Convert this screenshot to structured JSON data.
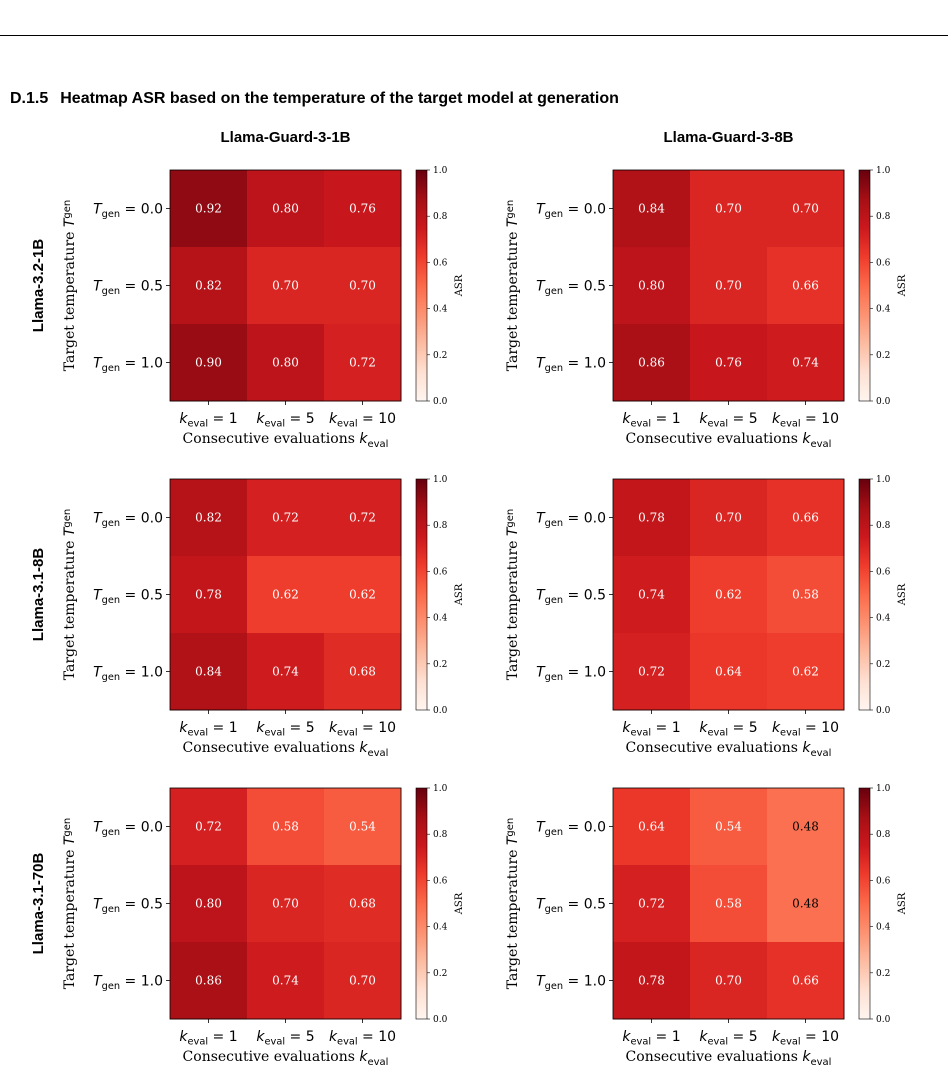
{
  "heading": {
    "number": "D.1.5",
    "title": "Heatmap ASR based on the temperature of the target model at generation"
  },
  "column_titles": [
    "Llama-Guard-3-1B",
    "Llama-Guard-3-8B"
  ],
  "row_titles": [
    "Llama-3.2-1B",
    "Llama-3.1-8B",
    "Llama-3.1-70B"
  ],
  "colormap": {
    "name": "Reds",
    "stops": [
      "#fff5f0",
      "#fee0d2",
      "#fcbba1",
      "#fc9272",
      "#fb6a4a",
      "#ef3b2c",
      "#cb181d",
      "#a50f15",
      "#67000d"
    ]
  },
  "chart_data": [
    {
      "type": "heatmap",
      "title": "Llama-Guard-3-1B",
      "row_label": "Llama-3.2-1B",
      "xlabel_text": "Consecutive evaluations",
      "xlabel_symbol": "k",
      "xlabel_sub": "eval",
      "ylabel_text": "Target temperature",
      "ylabel_symbol": "T",
      "ylabel_sub": "gen",
      "x_tick_labels": [
        {
          "sym": "k",
          "sub": "eval",
          "val": "= 1"
        },
        {
          "sym": "k",
          "sub": "eval",
          "val": "= 5"
        },
        {
          "sym": "k",
          "sub": "eval",
          "val": "= 10"
        }
      ],
      "y_tick_labels": [
        {
          "sym": "T",
          "sub": "gen",
          "val": "= 0.0"
        },
        {
          "sym": "T",
          "sub": "gen",
          "val": "= 0.5"
        },
        {
          "sym": "T",
          "sub": "gen",
          "val": "= 1.0"
        }
      ],
      "values": [
        [
          0.92,
          0.8,
          0.76
        ],
        [
          0.82,
          0.7,
          0.7
        ],
        [
          0.9,
          0.8,
          0.72
        ]
      ],
      "colorbar": {
        "label": "ASR",
        "range": [
          0.0,
          1.0
        ],
        "ticks": [
          "0.0",
          "0.2",
          "0.4",
          "0.6",
          "0.8",
          "1.0"
        ]
      }
    },
    {
      "type": "heatmap",
      "title": "Llama-Guard-3-8B",
      "row_label": "Llama-3.2-1B",
      "xlabel_text": "Consecutive evaluations",
      "xlabel_symbol": "k",
      "xlabel_sub": "eval",
      "ylabel_text": "Target temperature",
      "ylabel_symbol": "T",
      "ylabel_sub": "gen",
      "x_tick_labels": [
        {
          "sym": "k",
          "sub": "eval",
          "val": "= 1"
        },
        {
          "sym": "k",
          "sub": "eval",
          "val": "= 5"
        },
        {
          "sym": "k",
          "sub": "eval",
          "val": "= 10"
        }
      ],
      "y_tick_labels": [
        {
          "sym": "T",
          "sub": "gen",
          "val": "= 0.0"
        },
        {
          "sym": "T",
          "sub": "gen",
          "val": "= 0.5"
        },
        {
          "sym": "T",
          "sub": "gen",
          "val": "= 1.0"
        }
      ],
      "values": [
        [
          0.84,
          0.7,
          0.7
        ],
        [
          0.8,
          0.7,
          0.66
        ],
        [
          0.86,
          0.76,
          0.74
        ]
      ],
      "colorbar": {
        "label": "ASR",
        "range": [
          0.0,
          1.0
        ],
        "ticks": [
          "0.0",
          "0.2",
          "0.4",
          "0.6",
          "0.8",
          "1.0"
        ]
      }
    },
    {
      "type": "heatmap",
      "title": "Llama-Guard-3-1B",
      "row_label": "Llama-3.1-8B",
      "xlabel_text": "Consecutive evaluations",
      "xlabel_symbol": "k",
      "xlabel_sub": "eval",
      "ylabel_text": "Target temperature",
      "ylabel_symbol": "T",
      "ylabel_sub": "gen",
      "x_tick_labels": [
        {
          "sym": "k",
          "sub": "eval",
          "val": "= 1"
        },
        {
          "sym": "k",
          "sub": "eval",
          "val": "= 5"
        },
        {
          "sym": "k",
          "sub": "eval",
          "val": "= 10"
        }
      ],
      "y_tick_labels": [
        {
          "sym": "T",
          "sub": "gen",
          "val": "= 0.0"
        },
        {
          "sym": "T",
          "sub": "gen",
          "val": "= 0.5"
        },
        {
          "sym": "T",
          "sub": "gen",
          "val": "= 1.0"
        }
      ],
      "values": [
        [
          0.82,
          0.72,
          0.72
        ],
        [
          0.78,
          0.62,
          0.62
        ],
        [
          0.84,
          0.74,
          0.68
        ]
      ],
      "colorbar": {
        "label": "ASR",
        "range": [
          0.0,
          1.0
        ],
        "ticks": [
          "0.0",
          "0.2",
          "0.4",
          "0.6",
          "0.8",
          "1.0"
        ]
      }
    },
    {
      "type": "heatmap",
      "title": "Llama-Guard-3-8B",
      "row_label": "Llama-3.1-8B",
      "xlabel_text": "Consecutive evaluations",
      "xlabel_symbol": "k",
      "xlabel_sub": "eval",
      "ylabel_text": "Target temperature",
      "ylabel_symbol": "T",
      "ylabel_sub": "gen",
      "x_tick_labels": [
        {
          "sym": "k",
          "sub": "eval",
          "val": "= 1"
        },
        {
          "sym": "k",
          "sub": "eval",
          "val": "= 5"
        },
        {
          "sym": "k",
          "sub": "eval",
          "val": "= 10"
        }
      ],
      "y_tick_labels": [
        {
          "sym": "T",
          "sub": "gen",
          "val": "= 0.0"
        },
        {
          "sym": "T",
          "sub": "gen",
          "val": "= 0.5"
        },
        {
          "sym": "T",
          "sub": "gen",
          "val": "= 1.0"
        }
      ],
      "values": [
        [
          0.78,
          0.7,
          0.66
        ],
        [
          0.74,
          0.62,
          0.58
        ],
        [
          0.72,
          0.64,
          0.62
        ]
      ],
      "colorbar": {
        "label": "ASR",
        "range": [
          0.0,
          1.0
        ],
        "ticks": [
          "0.0",
          "0.2",
          "0.4",
          "0.6",
          "0.8",
          "1.0"
        ]
      }
    },
    {
      "type": "heatmap",
      "title": "Llama-Guard-3-1B",
      "row_label": "Llama-3.1-70B",
      "xlabel_text": "Consecutive evaluations",
      "xlabel_symbol": "k",
      "xlabel_sub": "eval",
      "ylabel_text": "Target temperature",
      "ylabel_symbol": "T",
      "ylabel_sub": "gen",
      "x_tick_labels": [
        {
          "sym": "k",
          "sub": "eval",
          "val": "= 1"
        },
        {
          "sym": "k",
          "sub": "eval",
          "val": "= 5"
        },
        {
          "sym": "k",
          "sub": "eval",
          "val": "= 10"
        }
      ],
      "y_tick_labels": [
        {
          "sym": "T",
          "sub": "gen",
          "val": "= 0.0"
        },
        {
          "sym": "T",
          "sub": "gen",
          "val": "= 0.5"
        },
        {
          "sym": "T",
          "sub": "gen",
          "val": "= 1.0"
        }
      ],
      "values": [
        [
          0.72,
          0.58,
          0.54
        ],
        [
          0.8,
          0.7,
          0.68
        ],
        [
          0.86,
          0.74,
          0.7
        ]
      ],
      "colorbar": {
        "label": "ASR",
        "range": [
          0.0,
          1.0
        ],
        "ticks": [
          "0.0",
          "0.2",
          "0.4",
          "0.6",
          "0.8",
          "1.0"
        ]
      }
    },
    {
      "type": "heatmap",
      "title": "Llama-Guard-3-8B",
      "row_label": "Llama-3.1-70B",
      "xlabel_text": "Consecutive evaluations",
      "xlabel_symbol": "k",
      "xlabel_sub": "eval",
      "ylabel_text": "Target temperature",
      "ylabel_symbol": "T",
      "ylabel_sub": "gen",
      "x_tick_labels": [
        {
          "sym": "k",
          "sub": "eval",
          "val": "= 1"
        },
        {
          "sym": "k",
          "sub": "eval",
          "val": "= 5"
        },
        {
          "sym": "k",
          "sub": "eval",
          "val": "= 10"
        }
      ],
      "y_tick_labels": [
        {
          "sym": "T",
          "sub": "gen",
          "val": "= 0.0"
        },
        {
          "sym": "T",
          "sub": "gen",
          "val": "= 0.5"
        },
        {
          "sym": "T",
          "sub": "gen",
          "val": "= 1.0"
        }
      ],
      "values": [
        [
          0.64,
          0.54,
          0.48
        ],
        [
          0.72,
          0.58,
          0.48
        ],
        [
          0.78,
          0.7,
          0.66
        ]
      ],
      "colorbar": {
        "label": "ASR",
        "range": [
          0.0,
          1.0
        ],
        "ticks": [
          "0.0",
          "0.2",
          "0.4",
          "0.6",
          "0.8",
          "1.0"
        ]
      }
    }
  ]
}
